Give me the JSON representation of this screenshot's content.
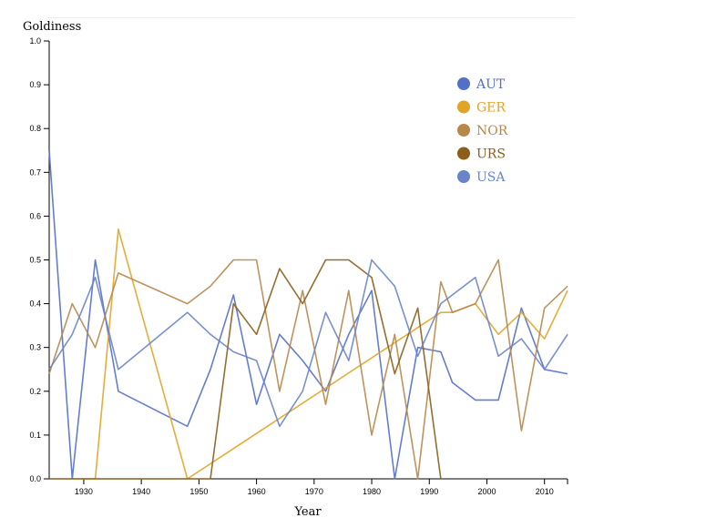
{
  "chart_data": {
    "type": "line",
    "xlabel": "Year",
    "ylabel": "Goldiness",
    "xlim": [
      1924,
      2014
    ],
    "ylim": [
      0,
      1.0
    ],
    "x_ticks": [
      1930,
      1940,
      1950,
      1960,
      1970,
      1980,
      1990,
      2000,
      2010
    ],
    "x_tick_labels": [
      "1930",
      "1940",
      "1950",
      "1960",
      "1970",
      "1980",
      "1990",
      "2000",
      "2010"
    ],
    "y_ticks": [
      0,
      0.1,
      0.2,
      0.3,
      0.4,
      0.5,
      0.6,
      0.7,
      0.8,
      0.9,
      1.0
    ],
    "y_tick_labels": [
      "0.0",
      "0.1",
      "0.2",
      "0.3",
      "0.4",
      "0.5",
      "0.6",
      "0.7",
      "0.8",
      "0.9",
      "1.0"
    ],
    "legend_position": "top-right",
    "series": [
      {
        "name": "AUT",
        "color": "#5470c6",
        "x": [
          1924,
          1928,
          1932,
          1936,
          1948,
          1952,
          1956,
          1960,
          1964,
          1968,
          1972,
          1976,
          1980,
          1984,
          1988,
          1992,
          1994,
          1998,
          2002,
          2006,
          2010,
          2014
        ],
        "y": [
          0.75,
          0.0,
          0.5,
          0.2,
          0.12,
          0.25,
          0.42,
          0.17,
          0.33,
          0.27,
          0.2,
          0.33,
          0.43,
          0.0,
          0.3,
          0.29,
          0.22,
          0.18,
          0.18,
          0.39,
          0.25,
          0.24
        ]
      },
      {
        "name": "GER",
        "color": "#e0a526",
        "x": [
          1928,
          1932,
          1936,
          1948,
          1992,
          1994,
          1998,
          2002,
          2006,
          2010,
          2014
        ],
        "y": [
          0.0,
          0.0,
          0.57,
          0.0,
          0.38,
          0.38,
          0.4,
          0.33,
          0.38,
          0.32,
          0.43
        ]
      },
      {
        "name": "NOR",
        "color": "#b8874a",
        "x": [
          1924,
          1928,
          1932,
          1936,
          1948,
          1952,
          1956,
          1960,
          1964,
          1968,
          1972,
          1976,
          1980,
          1984,
          1988,
          1992,
          1994,
          1998,
          2002,
          2006,
          2010,
          2014
        ],
        "y": [
          0.24,
          0.4,
          0.3,
          0.47,
          0.4,
          0.44,
          0.5,
          0.5,
          0.2,
          0.43,
          0.17,
          0.43,
          0.1,
          0.33,
          0.0,
          0.45,
          0.38,
          0.4,
          0.5,
          0.11,
          0.39,
          0.44
        ]
      },
      {
        "name": "URS",
        "color": "#8b5e1a",
        "x": [
          1924,
          1952,
          1956,
          1960,
          1964,
          1968,
          1972,
          1976,
          1980,
          1984,
          1988,
          1992
        ],
        "y": [
          0.0,
          0.0,
          0.4,
          0.33,
          0.48,
          0.4,
          0.5,
          0.5,
          0.46,
          0.24,
          0.39,
          0.0
        ]
      },
      {
        "name": "USA",
        "color": "#6a84c9",
        "x": [
          1924,
          1928,
          1932,
          1936,
          1948,
          1952,
          1956,
          1960,
          1964,
          1968,
          1972,
          1976,
          1980,
          1984,
          1988,
          1992,
          1998,
          2002,
          2006,
          2010,
          2014
        ],
        "y": [
          0.25,
          0.33,
          0.46,
          0.25,
          0.38,
          0.33,
          0.29,
          0.27,
          0.12,
          0.2,
          0.38,
          0.27,
          0.5,
          0.44,
          0.28,
          0.4,
          0.46,
          0.28,
          0.32,
          0.25,
          0.33
        ]
      }
    ]
  }
}
